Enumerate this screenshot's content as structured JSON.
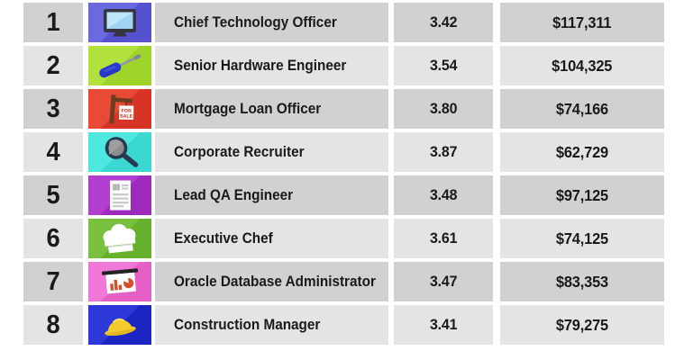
{
  "table": {
    "columns": [
      "rank",
      "icon",
      "job_title",
      "rating",
      "salary"
    ],
    "rows": [
      {
        "rank": "1",
        "icon": "monitor",
        "title": "Chief Technology Officer",
        "rating": "3.42",
        "salary": "$117,311",
        "icon_bg_light": "#6b69df",
        "icon_bg_dark": "#5551cf"
      },
      {
        "rank": "2",
        "icon": "screwdriver",
        "title": "Senior Hardware Engineer",
        "rating": "3.54",
        "salary": "$104,325",
        "icon_bg_light": "#b2e13e",
        "icon_bg_dark": "#9ed32a"
      },
      {
        "rank": "3",
        "icon": "for-sale-sign",
        "title": "Mortgage Loan Officer",
        "rating": "3.80",
        "salary": "$74,166",
        "icon_bg_light": "#e84a35",
        "icon_bg_dark": "#d63426",
        "sign_line1": "FOR",
        "sign_line2": "SALE"
      },
      {
        "rank": "4",
        "icon": "magnifier",
        "title": "Corporate Recruiter",
        "rating": "3.87",
        "salary": "$62,729",
        "icon_bg_light": "#4fe8e1",
        "icon_bg_dark": "#3bd8d2"
      },
      {
        "rank": "5",
        "icon": "document",
        "title": "Lead QA Engineer",
        "rating": "3.48",
        "salary": "$97,125",
        "icon_bg_light": "#b23ecf",
        "icon_bg_dark": "#9d2abc"
      },
      {
        "rank": "6",
        "icon": "chef-hat",
        "title": "Executive Chef",
        "rating": "3.61",
        "salary": "$74,125",
        "icon_bg_light": "#78c03e",
        "icon_bg_dark": "#65b12b"
      },
      {
        "rank": "7",
        "icon": "presentation-chart",
        "title": "Oracle Database Administrator",
        "rating": "3.47",
        "salary": "$83,353",
        "icon_bg_light": "#f078d8",
        "icon_bg_dark": "#e65fc6"
      },
      {
        "rank": "8",
        "icon": "hard-hat",
        "title": "Construction Manager",
        "rating": "3.41",
        "salary": "$79,275",
        "icon_bg_light": "#2c38da",
        "icon_bg_dark": "#1a25c2"
      }
    ],
    "colors": {
      "row_odd_bg": "#d1d1d1",
      "row_even_bg": "#e4e4e4",
      "text": "#1a1a1a",
      "page_bg": "#ffffff"
    }
  }
}
